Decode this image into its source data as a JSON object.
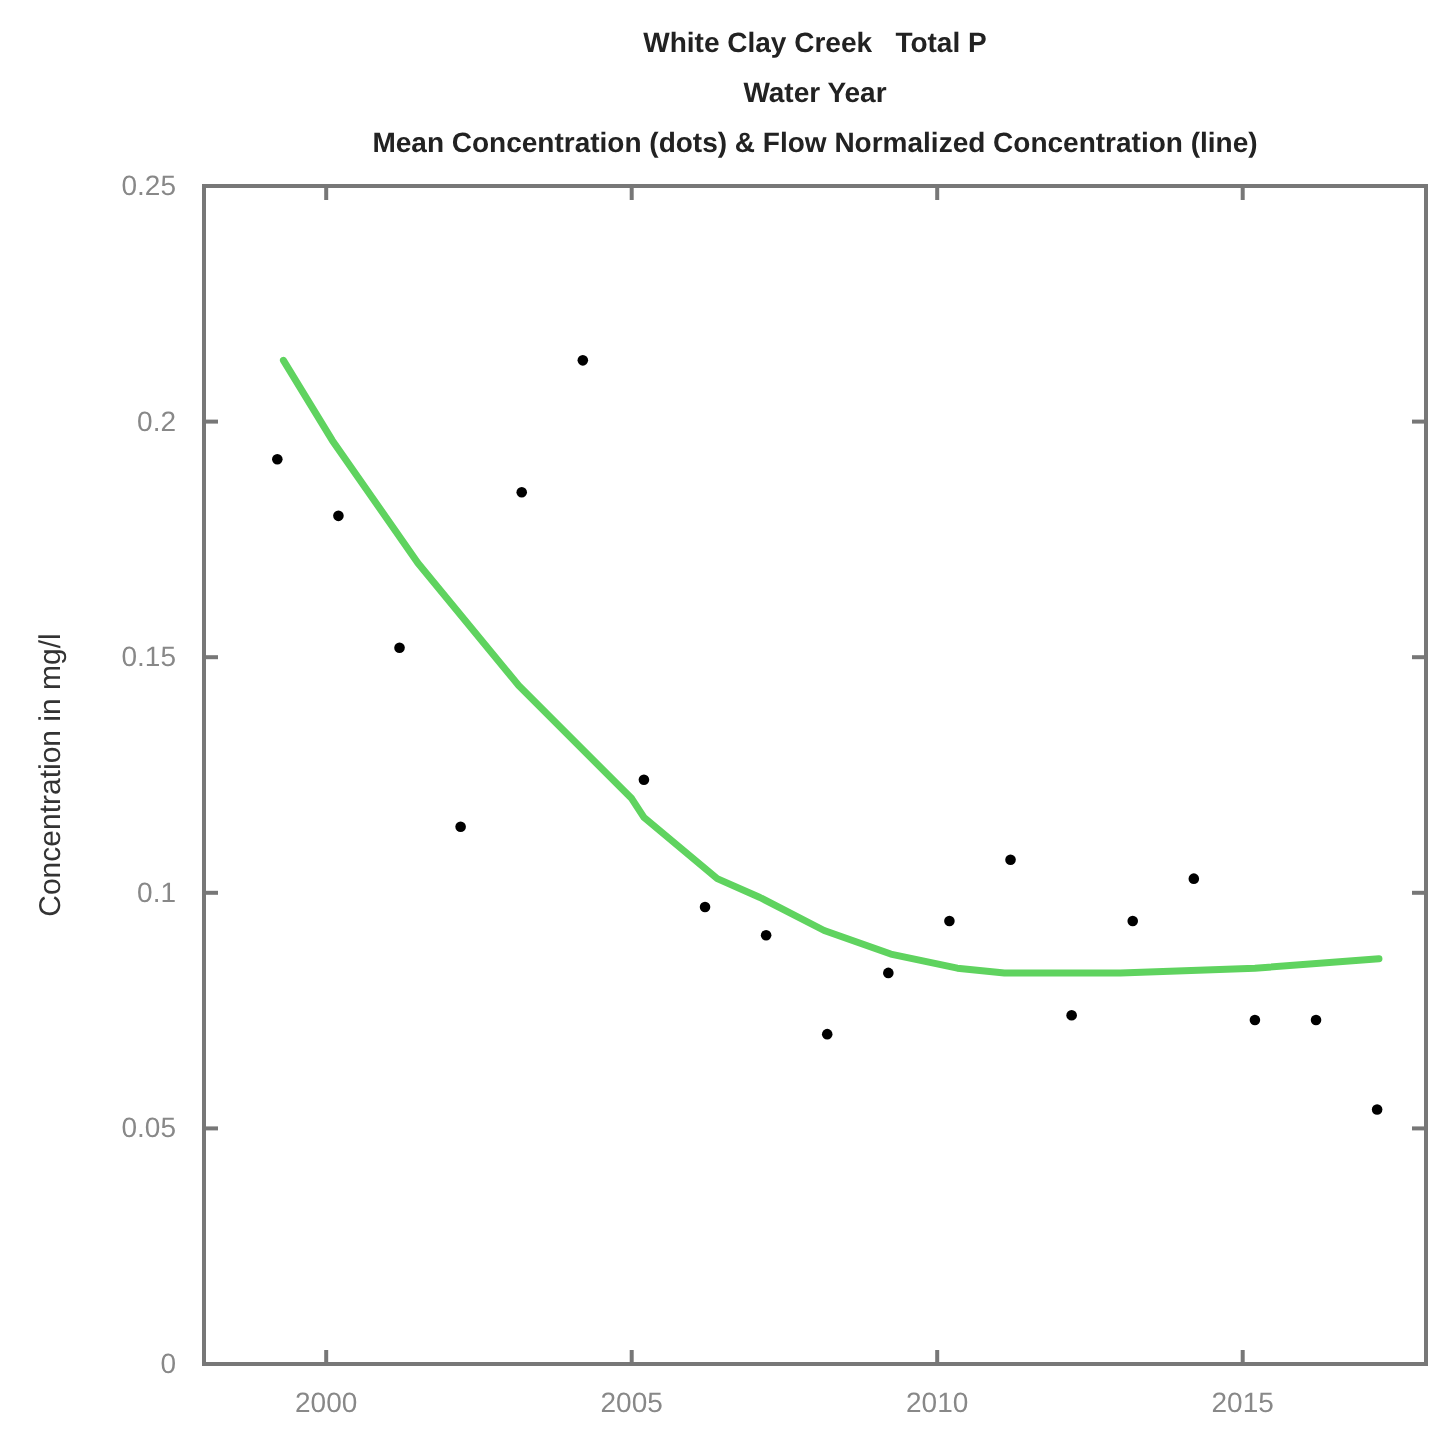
{
  "chart_data": {
    "type": "scatter",
    "title": "White Clay Creek   Total P\nWater Year\nMean Concentration (dots) & Flow Normalized Concentration (line)",
    "ylabel": "Concentration in mg/l",
    "xlim": [
      1998,
      2018
    ],
    "xticks": [
      2000,
      2005,
      2010,
      2015
    ],
    "ylim": [
      0,
      0.25
    ],
    "yticks": [
      0,
      0.05,
      0.1,
      0.15,
      0.2,
      0.25
    ],
    "grid": false,
    "series": [
      {
        "color": "#000000",
        "marker": "circle",
        "x": [
          1999.2,
          2000.2,
          2001.2,
          2002.2,
          2003.2,
          2004.2,
          2005.2,
          2006.2,
          2007.2,
          2008.2,
          2009.2,
          2010.2,
          2011.2,
          2012.2,
          2013.2,
          2014.2,
          2015.2,
          2016.2,
          2017.2
        ],
        "values": [
          0.192,
          0.18,
          0.152,
          0.114,
          0.185,
          0.213,
          0.124,
          0.097,
          0.091,
          0.07,
          0.083,
          0.094,
          0.107,
          0.074,
          0.094,
          0.103,
          0.073,
          0.073,
          0.054
        ]
      },
      {
        "type": "line",
        "color": "#5fd35f",
        "line_style": "solid",
        "marker": "none",
        "x": [
          1999.3,
          2000.1,
          2001.5,
          2003.15,
          2005,
          2005.2,
          2006.4,
          2007.1,
          2008.15,
          2009.24,
          2010.33,
          2011.1,
          2013,
          2015.2,
          2017.23
        ],
        "values": [
          0.213,
          0.196,
          0.17,
          0.144,
          0.12,
          0.116,
          0.103,
          0.099,
          0.092,
          0.087,
          0.084,
          0.083,
          0.083,
          0.084,
          0.086
        ]
      }
    ]
  }
}
